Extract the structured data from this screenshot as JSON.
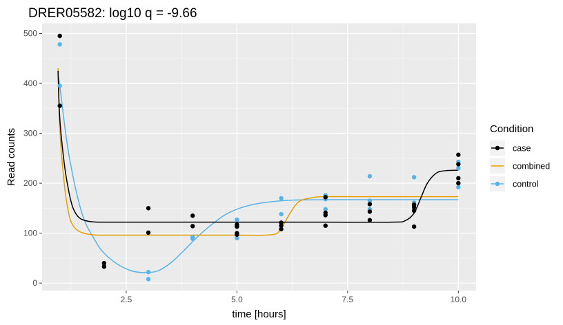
{
  "chart_data": {
    "type": "scatter",
    "title": "DRER05582: log10 q = -9.66",
    "xlabel": "time [hours]",
    "ylabel": "Read counts",
    "xlim": [
      0.6,
      10.4
    ],
    "ylim": [
      -15,
      520
    ],
    "x_ticks": [
      2.5,
      5.0,
      7.5,
      10.0
    ],
    "x_tick_labels": [
      "2.5",
      "5.0",
      "7.5",
      "10.0"
    ],
    "y_ticks": [
      0,
      100,
      200,
      300,
      400,
      500
    ],
    "y_tick_labels": [
      "0",
      "100",
      "200",
      "300",
      "400",
      "500"
    ],
    "grid": true,
    "legend": {
      "title": "Condition",
      "placement": "right",
      "entries": [
        {
          "label": "case",
          "color": "#000000",
          "type": "line-point"
        },
        {
          "label": "combined",
          "color": "#E69F00",
          "type": "line"
        },
        {
          "label": "control",
          "color": "#56B4E9",
          "type": "line-point"
        }
      ]
    },
    "series": [
      {
        "name": "case",
        "color": "#000000",
        "points": [
          [
            1,
            495
          ],
          [
            1,
            355
          ],
          [
            2,
            40
          ],
          [
            2,
            33
          ],
          [
            3,
            150
          ],
          [
            3,
            101
          ],
          [
            4,
            135
          ],
          [
            4,
            114
          ],
          [
            5,
            117
          ],
          [
            5,
            113
          ],
          [
            5,
            100
          ],
          [
            5,
            97
          ],
          [
            6,
            121
          ],
          [
            6,
            115
          ],
          [
            6,
            108
          ],
          [
            7,
            172
          ],
          [
            7,
            141
          ],
          [
            7,
            136
          ],
          [
            7,
            115
          ],
          [
            8,
            158
          ],
          [
            8,
            143
          ],
          [
            8,
            126
          ],
          [
            9,
            157
          ],
          [
            9,
            152
          ],
          [
            9,
            145
          ],
          [
            9,
            113
          ],
          [
            10,
            257
          ],
          [
            10,
            238
          ],
          [
            10,
            210
          ],
          [
            10,
            200
          ]
        ],
        "curve": [
          [
            0.96,
            425
          ],
          [
            1.0,
            330
          ],
          [
            1.1,
            240
          ],
          [
            1.2,
            185
          ],
          [
            1.3,
            150
          ],
          [
            1.45,
            130
          ],
          [
            1.7,
            123
          ],
          [
            2.0,
            122
          ],
          [
            3.0,
            122
          ],
          [
            5.0,
            122
          ],
          [
            7.0,
            122
          ],
          [
            8.5,
            122
          ],
          [
            8.8,
            125
          ],
          [
            9.0,
            140
          ],
          [
            9.15,
            170
          ],
          [
            9.3,
            200
          ],
          [
            9.5,
            220
          ],
          [
            9.7,
            225
          ],
          [
            10.0,
            226
          ]
        ]
      },
      {
        "name": "combined",
        "color": "#E69F00",
        "points": [],
        "curve": [
          [
            0.96,
            430
          ],
          [
            1.0,
            310
          ],
          [
            1.1,
            200
          ],
          [
            1.2,
            140
          ],
          [
            1.3,
            115
          ],
          [
            1.45,
            103
          ],
          [
            1.7,
            97
          ],
          [
            2.0,
            96
          ],
          [
            3.0,
            96
          ],
          [
            4.0,
            96
          ],
          [
            5.0,
            96
          ],
          [
            5.8,
            97
          ],
          [
            6.0,
            110
          ],
          [
            6.2,
            140
          ],
          [
            6.4,
            163
          ],
          [
            6.7,
            171
          ],
          [
            7.0,
            173
          ],
          [
            8.0,
            173
          ],
          [
            9.0,
            173
          ],
          [
            10.0,
            173
          ]
        ]
      },
      {
        "name": "control",
        "color": "#56B4E9",
        "points": [
          [
            1,
            478
          ],
          [
            1,
            395
          ],
          [
            2,
            37
          ],
          [
            3,
            22
          ],
          [
            3,
            8
          ],
          [
            4,
            92
          ],
          [
            4,
            89
          ],
          [
            5,
            127
          ],
          [
            5,
            115
          ],
          [
            5,
            90
          ],
          [
            6,
            170
          ],
          [
            6,
            138
          ],
          [
            7,
            176
          ],
          [
            7,
            168
          ],
          [
            7,
            148
          ],
          [
            8,
            214
          ],
          [
            8,
            165
          ],
          [
            8,
            148
          ],
          [
            9,
            212
          ],
          [
            9,
            161
          ],
          [
            9,
            150
          ],
          [
            10,
            243
          ],
          [
            10,
            230
          ],
          [
            10,
            192
          ]
        ],
        "curve": [
          [
            0.96,
            415
          ],
          [
            1.0,
            395
          ],
          [
            1.2,
            260
          ],
          [
            1.5,
            140
          ],
          [
            1.8,
            85
          ],
          [
            2.0,
            60
          ],
          [
            2.3,
            38
          ],
          [
            2.6,
            25
          ],
          [
            2.9,
            21
          ],
          [
            3.2,
            24
          ],
          [
            3.5,
            40
          ],
          [
            3.8,
            65
          ],
          [
            4.1,
            92
          ],
          [
            4.4,
            115
          ],
          [
            4.7,
            135
          ],
          [
            5.0,
            148
          ],
          [
            5.4,
            158
          ],
          [
            5.8,
            163
          ],
          [
            6.2,
            166
          ],
          [
            7.0,
            167
          ],
          [
            8.0,
            167
          ],
          [
            9.0,
            167
          ],
          [
            10.0,
            167
          ]
        ]
      }
    ]
  }
}
